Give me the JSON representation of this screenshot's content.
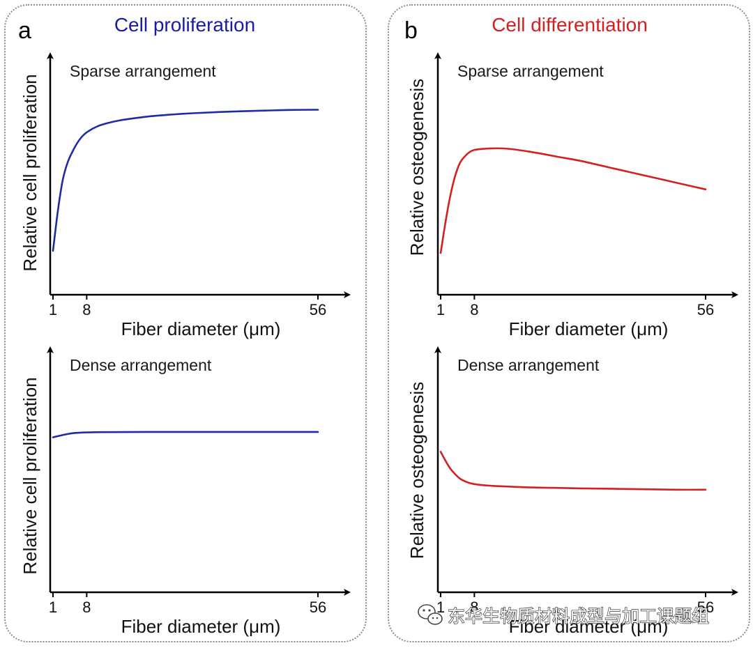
{
  "panels": [
    {
      "letter": "a",
      "title": "Cell proliferation",
      "title_color": "#1a1aa6",
      "line_color": "#1f2aa8"
    },
    {
      "letter": "b",
      "title": "Cell differentiation",
      "title_color": "#d42020",
      "line_color": "#d42020"
    }
  ],
  "watermark": {
    "text": "东华生物质材料成型与加工课题组",
    "icon": "wechat-icon"
  },
  "chart_data": [
    {
      "type": "line",
      "title": "Sparse arrangement",
      "xlabel": "Fiber diameter (μm)",
      "ylabel": "Relative cell proliferation",
      "xticks": [
        1,
        8,
        56
      ],
      "xlim": [
        0,
        60
      ],
      "ylim": [
        0,
        1
      ],
      "grid": false,
      "x": [
        1,
        2,
        3,
        4,
        5,
        6,
        7,
        8,
        10,
        12,
        15,
        20,
        25,
        30,
        35,
        40,
        45,
        50,
        56
      ],
      "series": [
        {
          "values": [
            0.2,
            0.38,
            0.52,
            0.6,
            0.65,
            0.69,
            0.72,
            0.74,
            0.765,
            0.78,
            0.795,
            0.81,
            0.82,
            0.827,
            0.832,
            0.836,
            0.839,
            0.842,
            0.843
          ]
        }
      ]
    },
    {
      "type": "line",
      "title": "Dense arrangement",
      "xlabel": "Fiber diameter (μm)",
      "ylabel": "Relative cell proliferation",
      "xticks": [
        1,
        8,
        56
      ],
      "xlim": [
        0,
        60
      ],
      "ylim": [
        0,
        1
      ],
      "grid": false,
      "x": [
        1,
        3,
        5,
        8,
        12,
        20,
        30,
        40,
        56
      ],
      "series": [
        {
          "values": [
            0.695,
            0.705,
            0.713,
            0.717,
            0.718,
            0.719,
            0.719,
            0.719,
            0.719
          ]
        }
      ]
    },
    {
      "type": "line",
      "title": "Sparse arrangement",
      "xlabel": "Fiber diameter (μm)",
      "ylabel": "Relative osteogenesis",
      "xticks": [
        1,
        8,
        56
      ],
      "xlim": [
        0,
        60
      ],
      "ylim": [
        0,
        1
      ],
      "grid": false,
      "x": [
        1,
        2,
        3,
        4,
        5,
        6,
        7,
        8,
        10,
        12,
        15,
        20,
        25,
        30,
        35,
        40,
        45,
        50,
        56
      ],
      "series": [
        {
          "values": [
            0.19,
            0.33,
            0.45,
            0.54,
            0.6,
            0.63,
            0.65,
            0.66,
            0.665,
            0.667,
            0.665,
            0.65,
            0.63,
            0.61,
            0.585,
            0.56,
            0.535,
            0.51,
            0.48
          ]
        }
      ]
    },
    {
      "type": "line",
      "title": "Dense arrangement",
      "xlabel": "Fiber diameter (μm)",
      "ylabel": "Relative osteogenesis",
      "xticks": [
        1,
        8,
        56
      ],
      "xlim": [
        0,
        60
      ],
      "ylim": [
        0,
        1
      ],
      "grid": false,
      "x": [
        1,
        2,
        3,
        4,
        5,
        6,
        7,
        8,
        10,
        12,
        15,
        20,
        25,
        30,
        40,
        50,
        56
      ],
      "series": [
        {
          "values": [
            0.63,
            0.59,
            0.555,
            0.53,
            0.51,
            0.498,
            0.49,
            0.485,
            0.48,
            0.477,
            0.474,
            0.47,
            0.468,
            0.466,
            0.463,
            0.46,
            0.46
          ]
        }
      ]
    }
  ]
}
